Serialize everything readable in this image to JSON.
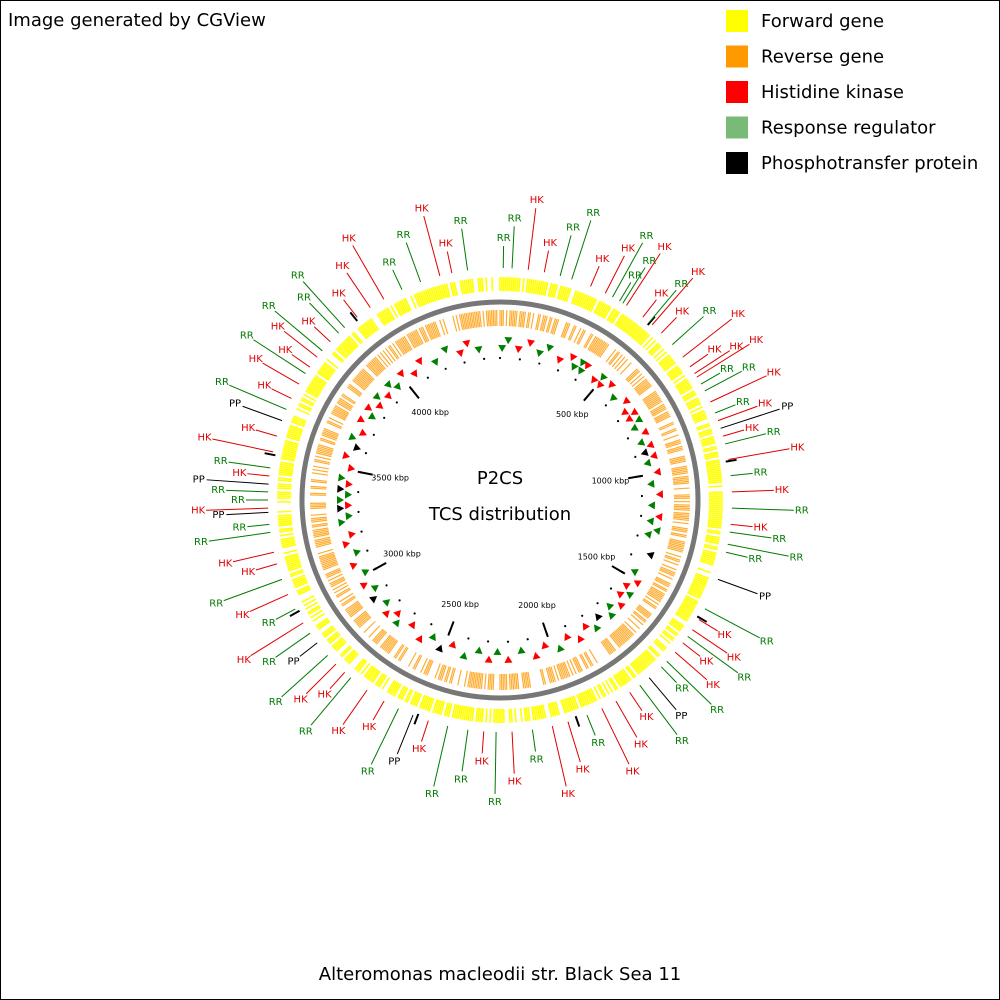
{
  "header": {
    "title": "Image generated by CGView"
  },
  "legend": [
    {
      "name": "Forward gene",
      "color": "#ffff00"
    },
    {
      "name": "Reverse gene",
      "color": "#ff9900"
    },
    {
      "name": "Histidine kinase",
      "color": "#ff0000"
    },
    {
      "name": "Response regulator",
      "color": "#77bb77"
    },
    {
      "name": "Phosphotransfer protein",
      "color": "#000000"
    }
  ],
  "center": {
    "title": "P2CS",
    "subtitle": "TCS distribution"
  },
  "caption": "Alteromonas macleodii str. Black Sea 11",
  "scale_range_kbp": [
    0,
    4480
  ],
  "scale_ticks": [
    {
      "value": 500,
      "label": "500 kbp"
    },
    {
      "value": 1000,
      "label": "1000 kbp"
    },
    {
      "value": 1500,
      "label": "1500 kbp"
    },
    {
      "value": 2000,
      "label": "2000 kbp"
    },
    {
      "value": 2500,
      "label": "2500 kbp"
    },
    {
      "value": 3000,
      "label": "3000 kbp"
    },
    {
      "value": 3500,
      "label": "3500 kbp"
    },
    {
      "value": 4000,
      "label": "4000 kbp"
    }
  ],
  "label_colors": {
    "HK": "#e00000",
    "RR": "#007a00",
    "PP": "#000000"
  },
  "marker_colors": {
    "HK": "#ff0000",
    "RR": "#008000",
    "PP": "#000000"
  },
  "features": [
    {
      "label": "RR",
      "kbp": 10
    },
    {
      "label": "RR",
      "kbp": 37
    },
    {
      "label": "HK",
      "kbp": 87
    },
    {
      "label": "HK",
      "kbp": 137
    },
    {
      "label": "RR",
      "kbp": 187
    },
    {
      "label": "RR",
      "kbp": 224
    },
    {
      "label": "HK",
      "kbp": 286
    },
    {
      "label": "HK",
      "kbp": 336
    },
    {
      "label": "RR",
      "kbp": 361
    },
    {
      "label": "RR",
      "kbp": 386
    },
    {
      "label": "RR",
      "kbp": 398
    },
    {
      "label": "HK",
      "kbp": 411
    },
    {
      "label": "HK",
      "kbp": 473
    },
    {
      "label": "RR",
      "kbp": 498
    },
    {
      "label": "HK",
      "kbp": 510
    },
    {
      "label": "HK",
      "kbp": 548
    },
    {
      "label": "RR",
      "kbp": 597
    },
    {
      "label": "HK",
      "kbp": 647
    },
    {
      "label": "HK",
      "kbp": 684
    },
    {
      "label": "HK",
      "kbp": 709
    },
    {
      "label": "HK",
      "kbp": 722
    },
    {
      "label": "RR",
      "kbp": 747
    },
    {
      "label": "RR",
      "kbp": 771
    },
    {
      "label": "HK",
      "kbp": 809
    },
    {
      "label": "RR",
      "kbp": 846
    },
    {
      "label": "HK",
      "kbp": 871
    },
    {
      "label": "PP",
      "kbp": 896
    },
    {
      "label": "HK",
      "kbp": 921
    },
    {
      "label": "RR",
      "kbp": 946
    },
    {
      "label": "HK",
      "kbp": 995
    },
    {
      "label": "RR",
      "kbp": 1045
    },
    {
      "label": "HK",
      "kbp": 1095
    },
    {
      "label": "RR",
      "kbp": 1145
    },
    {
      "label": "HK",
      "kbp": 1195
    },
    {
      "label": "RR",
      "kbp": 1219
    },
    {
      "label": "RR",
      "kbp": 1257
    },
    {
      "label": "RR",
      "kbp": 1282
    },
    {
      "label": "PP",
      "kbp": 1369
    },
    {
      "label": "RR",
      "kbp": 1468
    },
    {
      "label": "HK",
      "kbp": 1506
    },
    {
      "label": "HK",
      "kbp": 1543
    },
    {
      "label": "RR",
      "kbp": 1568
    },
    {
      "label": "HK",
      "kbp": 1593
    },
    {
      "label": "HK",
      "kbp": 1630
    },
    {
      "label": "RR",
      "kbp": 1668
    },
    {
      "label": "RR",
      "kbp": 1692
    },
    {
      "label": "PP",
      "kbp": 1742
    },
    {
      "label": "RR",
      "kbp": 1779
    },
    {
      "label": "HK",
      "kbp": 1817
    },
    {
      "label": "HK",
      "kbp": 1867
    },
    {
      "label": "HK",
      "kbp": 1916
    },
    {
      "label": "RR",
      "kbp": 1966
    },
    {
      "label": "HK",
      "kbp": 2028
    },
    {
      "label": "HK",
      "kbp": 2078
    },
    {
      "label": "RR",
      "kbp": 2140
    },
    {
      "label": "HK",
      "kbp": 2203
    },
    {
      "label": "RR",
      "kbp": 2252
    },
    {
      "label": "HK",
      "kbp": 2290
    },
    {
      "label": "RR",
      "kbp": 2339
    },
    {
      "label": "RR",
      "kbp": 2402
    },
    {
      "label": "HK",
      "kbp": 2464
    },
    {
      "label": "PP",
      "kbp": 2514
    },
    {
      "label": "RR",
      "kbp": 2563
    },
    {
      "label": "HK",
      "kbp": 2613
    },
    {
      "label": "HK",
      "kbp": 2675
    },
    {
      "label": "RR",
      "kbp": 2738
    },
    {
      "label": "HK",
      "kbp": 2763
    },
    {
      "label": "HK",
      "kbp": 2800
    },
    {
      "label": "RR",
      "kbp": 2837
    },
    {
      "label": "PP",
      "kbp": 2887
    },
    {
      "label": "RR",
      "kbp": 2924
    },
    {
      "label": "HK",
      "kbp": 2962
    },
    {
      "label": "RR",
      "kbp": 3011
    },
    {
      "label": "HK",
      "kbp": 3061
    },
    {
      "label": "RR",
      "kbp": 3111
    },
    {
      "label": "HK",
      "kbp": 3161
    },
    {
      "label": "HK",
      "kbp": 3198
    },
    {
      "label": "RR",
      "kbp": 3260
    },
    {
      "label": "RR",
      "kbp": 3285
    },
    {
      "label": "PP",
      "kbp": 3322
    },
    {
      "label": "HK",
      "kbp": 3335
    },
    {
      "label": "RR",
      "kbp": 3360
    },
    {
      "label": "RR",
      "kbp": 3385
    },
    {
      "label": "PP",
      "kbp": 3409
    },
    {
      "label": "HK",
      "kbp": 3434
    },
    {
      "label": "RR",
      "kbp": 3459
    },
    {
      "label": "HK",
      "kbp": 3509
    },
    {
      "label": "HK",
      "kbp": 3559
    },
    {
      "label": "PP",
      "kbp": 3609
    },
    {
      "label": "RR",
      "kbp": 3646
    },
    {
      "label": "HK",
      "kbp": 3683
    },
    {
      "label": "HK",
      "kbp": 3733
    },
    {
      "label": "RR",
      "kbp": 3771
    },
    {
      "label": "HK",
      "kbp": 3795
    },
    {
      "label": "HK",
      "kbp": 3833
    },
    {
      "label": "RR",
      "kbp": 3858
    },
    {
      "label": "HK",
      "kbp": 3895
    },
    {
      "label": "RR",
      "kbp": 3932
    },
    {
      "label": "RR",
      "kbp": 3957
    },
    {
      "label": "HK",
      "kbp": 4007
    },
    {
      "label": "HK",
      "kbp": 4057
    },
    {
      "label": "HK",
      "kbp": 4106
    },
    {
      "label": "RR",
      "kbp": 4169
    },
    {
      "label": "RR",
      "kbp": 4231
    },
    {
      "label": "HK",
      "kbp": 4293
    },
    {
      "label": "HK",
      "kbp": 4331
    },
    {
      "label": "RR",
      "kbp": 4380
    }
  ]
}
